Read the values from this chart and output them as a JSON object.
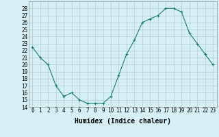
{
  "x": [
    0,
    1,
    2,
    3,
    4,
    5,
    6,
    7,
    8,
    9,
    10,
    11,
    12,
    13,
    14,
    15,
    16,
    17,
    18,
    19,
    20,
    21,
    22,
    23
  ],
  "y": [
    22.5,
    21.0,
    20.0,
    17.0,
    15.5,
    16.0,
    15.0,
    14.5,
    14.5,
    14.5,
    15.5,
    18.5,
    21.5,
    23.5,
    26.0,
    26.5,
    27.0,
    28.0,
    28.0,
    27.5,
    24.5,
    23.0,
    21.5,
    20.0
  ],
  "line_color": "#1a7a6e",
  "marker": "+",
  "marker_size": 3,
  "bg_color": "#d6eff5",
  "grid_color": "#b0cdd4",
  "xlabel": "Humidex (Indice chaleur)",
  "ylim": [
    14,
    29
  ],
  "yticks": [
    14,
    15,
    16,
    17,
    18,
    19,
    20,
    21,
    22,
    23,
    24,
    25,
    26,
    27,
    28
  ],
  "xticks": [
    0,
    1,
    2,
    3,
    4,
    5,
    6,
    7,
    8,
    9,
    10,
    11,
    12,
    13,
    14,
    15,
    16,
    17,
    18,
    19,
    20,
    21,
    22,
    23
  ],
  "tick_fontsize": 5.5,
  "xlabel_fontsize": 7,
  "line_width": 0.8,
  "marker_edge_width": 0.8
}
